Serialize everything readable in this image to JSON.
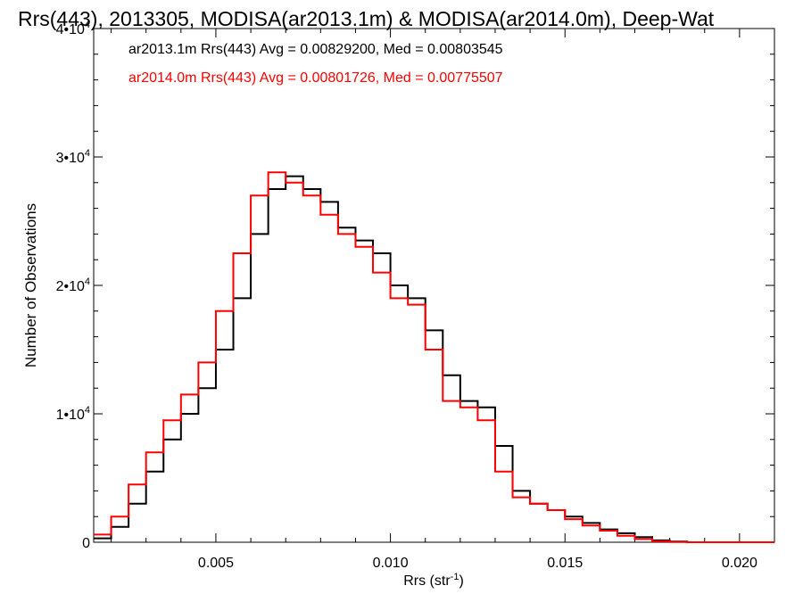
{
  "chart_data": {
    "type": "line",
    "title": "Rrs(443), 2013305, MODISA(ar2013.1m) & MODISA(ar2014.0m), Deep-Wat",
    "xlabel": "Rrs (str",
    "xlabel_sup": "-1",
    "xlabel_close": ")",
    "ylabel": "Number of Observations",
    "xlim": [
      0.0015,
      0.021
    ],
    "ylim": [
      0,
      40000
    ],
    "x_ticks": [
      {
        "value": 0.005,
        "label": "0.005"
      },
      {
        "value": 0.01,
        "label": "0.010"
      },
      {
        "value": 0.015,
        "label": "0.015"
      },
      {
        "value": 0.02,
        "label": "0.020"
      }
    ],
    "y_ticks": [
      {
        "value": 0,
        "mant": "0",
        "exp": ""
      },
      {
        "value": 10000,
        "mant": "1•10",
        "exp": "4"
      },
      {
        "value": 20000,
        "mant": "2•10",
        "exp": "4"
      },
      {
        "value": 30000,
        "mant": "3•10",
        "exp": "4"
      },
      {
        "value": 40000,
        "mant": "4•10",
        "exp": "4"
      }
    ],
    "grid": false,
    "legend_position": "top-left",
    "series": [
      {
        "name": "ar2013.1m Rrs(443) Avg = 0.00829200, Med = 0.00803545",
        "color": "#000000",
        "x": [
          0.0015,
          0.002,
          0.0025,
          0.003,
          0.0035,
          0.004,
          0.0045,
          0.005,
          0.0055,
          0.006,
          0.0065,
          0.007,
          0.0075,
          0.008,
          0.0085,
          0.009,
          0.0095,
          0.01,
          0.0105,
          0.011,
          0.0115,
          0.012,
          0.0125,
          0.013,
          0.0135,
          0.014,
          0.0145,
          0.015,
          0.0155,
          0.016,
          0.0165,
          0.017,
          0.0175,
          0.018,
          0.0185,
          0.019,
          0.02,
          0.021
        ],
        "y": [
          300,
          1200,
          3000,
          5500,
          8000,
          10000,
          12000,
          15000,
          19000,
          24000,
          27500,
          28500,
          27500,
          26500,
          24500,
          23500,
          22500,
          20000,
          19000,
          16500,
          13000,
          11000,
          10500,
          7500,
          4000,
          3000,
          2500,
          2000,
          1500,
          1000,
          700,
          400,
          150,
          50,
          0,
          0,
          0,
          0
        ]
      },
      {
        "name": "ar2014.0m Rrs(443) Avg = 0.00801726, Med = 0.00775507",
        "color": "#ff0000",
        "x": [
          0.0015,
          0.002,
          0.0025,
          0.003,
          0.0035,
          0.004,
          0.0045,
          0.005,
          0.0055,
          0.006,
          0.0065,
          0.007,
          0.0075,
          0.008,
          0.0085,
          0.009,
          0.0095,
          0.01,
          0.0105,
          0.011,
          0.0115,
          0.012,
          0.0125,
          0.013,
          0.0135,
          0.014,
          0.0145,
          0.015,
          0.0155,
          0.016,
          0.0165,
          0.017,
          0.0175,
          0.018,
          0.0185,
          0.019,
          0.02,
          0.021
        ],
        "y": [
          600,
          2000,
          4500,
          7000,
          9500,
          11500,
          14000,
          18000,
          22500,
          27000,
          28800,
          28000,
          27000,
          25500,
          24000,
          23000,
          21000,
          19000,
          18500,
          15000,
          11000,
          10500,
          9500,
          5500,
          3500,
          3000,
          2500,
          1800,
          1300,
          900,
          500,
          250,
          80,
          20,
          0,
          0,
          0,
          0
        ]
      }
    ]
  }
}
